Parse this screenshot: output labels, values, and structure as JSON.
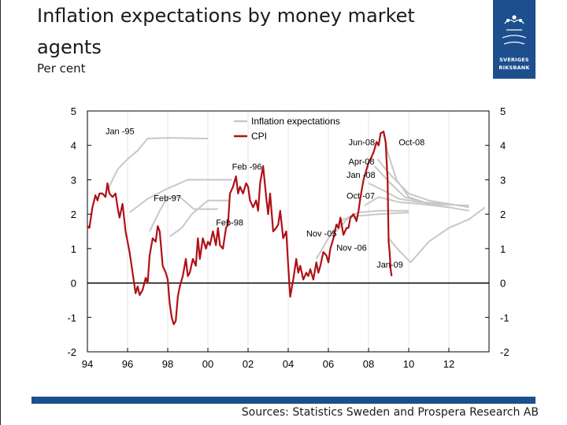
{
  "title": "Inflation expectations by money market agents",
  "subtitle": "Per cent",
  "logo": {
    "line1": "SVERIGES",
    "line2": "RIKSBANK"
  },
  "sources": "Sources: Statistics Sweden and Prospera Research AB",
  "chart_data": {
    "type": "line",
    "xlim": [
      1994,
      2014
    ],
    "ylim": [
      -2,
      5
    ],
    "x_tick_values": [
      1994,
      1996,
      1998,
      2000,
      2002,
      2004,
      2006,
      2008,
      2010,
      2012
    ],
    "x_tick_labels": [
      "94",
      "96",
      "98",
      "00",
      "02",
      "04",
      "06",
      "08",
      "10",
      "12"
    ],
    "y_ticks": [
      5,
      4,
      3,
      2,
      1,
      0,
      -1,
      -2
    ],
    "y_tick_labels": [
      "5",
      "4",
      "3",
      "2",
      "1",
      "0",
      "-1",
      "-2"
    ],
    "legend": {
      "position": "top-center",
      "entries": [
        {
          "label": "Inflation expectations",
          "color": "#c8c8c8"
        },
        {
          "label": "CPI",
          "color": "#b01016"
        }
      ]
    },
    "annotations": [
      {
        "text": "Jan -95",
        "x": 1994.9,
        "y": 4.33
      },
      {
        "text": "Feb -96",
        "x": 2001.2,
        "y": 3.3
      },
      {
        "text": "Feb-97",
        "x": 1997.3,
        "y": 2.38
      },
      {
        "text": "Feb-98",
        "x": 2000.4,
        "y": 1.67
      },
      {
        "text": "Nov -05",
        "x": 2004.9,
        "y": 1.35
      },
      {
        "text": "Nov -06",
        "x": 2006.4,
        "y": 0.94
      },
      {
        "text": "Jun-08",
        "x": 2007.0,
        "y": 4.0
      },
      {
        "text": "Oct-08",
        "x": 2009.5,
        "y": 4.0
      },
      {
        "text": "Apr-08",
        "x": 2007.0,
        "y": 3.45
      },
      {
        "text": "Jan -08",
        "x": 2006.9,
        "y": 3.05
      },
      {
        "text": "Oct -07",
        "x": 2006.9,
        "y": 2.45
      },
      {
        "text": "Jan-09",
        "x": 2008.4,
        "y": 0.45
      }
    ],
    "series": [
      {
        "name": "CPI",
        "color": "#b01016",
        "x": [
          1994.0,
          1994.1,
          1994.25,
          1994.4,
          1994.5,
          1994.6,
          1994.75,
          1994.9,
          1995.0,
          1995.1,
          1995.25,
          1995.4,
          1995.5,
          1995.6,
          1995.75,
          1995.9,
          1996.0,
          1996.1,
          1996.25,
          1996.4,
          1996.5,
          1996.6,
          1996.75,
          1996.9,
          1997.0,
          1997.1,
          1997.25,
          1997.4,
          1997.5,
          1997.6,
          1997.75,
          1997.9,
          1998.0,
          1998.1,
          1998.2,
          1998.3,
          1998.4,
          1998.5,
          1998.6,
          1998.75,
          1998.9,
          1999.0,
          1999.1,
          1999.25,
          1999.4,
          1999.5,
          1999.6,
          1999.75,
          1999.9,
          2000.0,
          2000.1,
          2000.25,
          2000.4,
          2000.5,
          2000.6,
          2000.75,
          2000.9,
          2001.0,
          2001.1,
          2001.25,
          2001.4,
          2001.5,
          2001.6,
          2001.75,
          2001.9,
          2002.0,
          2002.1,
          2002.25,
          2002.4,
          2002.5,
          2002.6,
          2002.75,
          2002.9,
          2003.0,
          2003.1,
          2003.25,
          2003.4,
          2003.5,
          2003.6,
          2003.75,
          2003.9,
          2004.0,
          2004.1,
          2004.25,
          2004.4,
          2004.5,
          2004.6,
          2004.75,
          2004.9,
          2005.0,
          2005.1,
          2005.25,
          2005.4,
          2005.5,
          2005.6,
          2005.75,
          2005.9,
          2006.0,
          2006.1,
          2006.25,
          2006.4,
          2006.5,
          2006.6,
          2006.75,
          2006.9,
          2007.0,
          2007.1,
          2007.25,
          2007.4,
          2007.5,
          2007.6,
          2007.75,
          2007.9,
          2008.0,
          2008.1,
          2008.25,
          2008.4,
          2008.5,
          2008.6,
          2008.75,
          2008.85,
          2008.95,
          2009.0,
          2009.05,
          2009.1,
          2009.15
        ],
        "y": [
          1.65,
          1.6,
          2.2,
          2.55,
          2.4,
          2.6,
          2.6,
          2.5,
          2.9,
          2.6,
          2.5,
          2.6,
          2.2,
          1.9,
          2.3,
          1.5,
          1.2,
          0.9,
          0.3,
          -0.3,
          -0.1,
          -0.35,
          -0.2,
          0.15,
          0.0,
          0.8,
          1.3,
          1.2,
          1.65,
          1.5,
          0.5,
          0.3,
          0.1,
          -0.6,
          -1.0,
          -1.2,
          -1.1,
          -0.4,
          -0.1,
          0.2,
          0.7,
          0.2,
          0.3,
          0.7,
          0.5,
          1.3,
          0.7,
          1.3,
          1.0,
          1.2,
          1.1,
          1.5,
          1.1,
          1.6,
          1.1,
          1.0,
          1.6,
          1.7,
          2.6,
          2.8,
          3.1,
          2.6,
          2.8,
          2.6,
          2.9,
          2.8,
          2.4,
          2.2,
          2.4,
          2.1,
          2.9,
          3.4,
          2.5,
          2.0,
          2.6,
          1.5,
          1.6,
          1.7,
          2.1,
          1.3,
          1.5,
          0.5,
          -0.4,
          0.1,
          0.7,
          0.3,
          0.5,
          0.1,
          0.3,
          0.2,
          0.4,
          0.1,
          0.6,
          0.3,
          0.5,
          0.9,
          0.8,
          0.6,
          1.0,
          1.3,
          1.7,
          1.6,
          1.9,
          1.4,
          1.6,
          1.6,
          1.9,
          2.0,
          1.8,
          2.1,
          2.5,
          3.0,
          3.3,
          3.5,
          3.6,
          3.8,
          4.1,
          4.0,
          4.35,
          4.4,
          4.1,
          3.0,
          1.2,
          0.9,
          0.4,
          0.2
        ]
      },
      {
        "name": "Jan -95",
        "color": "#c8c8c8",
        "x": [
          1995.0,
          1995.5,
          1996.0,
          1996.5,
          1997.0,
          1998.0,
          2000.0
        ],
        "y": [
          2.7,
          3.3,
          3.6,
          3.85,
          4.2,
          4.22,
          4.2
        ]
      },
      {
        "name": "Feb -96",
        "color": "#c8c8c8",
        "x": [
          1996.1,
          1997.0,
          1998.0,
          1999.0,
          2001.2
        ],
        "y": [
          2.05,
          2.45,
          2.75,
          3.0,
          3.0
        ]
      },
      {
        "name": "Feb-97",
        "color": "#c8c8c8",
        "x": [
          1997.1,
          1997.6,
          1998.0,
          1998.6,
          1999.3,
          2000.5
        ],
        "y": [
          1.5,
          2.1,
          2.5,
          2.5,
          2.15,
          2.15
        ]
      },
      {
        "name": "Feb-98",
        "color": "#c8c8c8",
        "x": [
          1998.1,
          1998.7,
          1999.2,
          2000.0,
          2001.1
        ],
        "y": [
          1.35,
          1.6,
          2.0,
          2.4,
          2.4
        ]
      },
      {
        "name": "Nov -05",
        "color": "#c8c8c8",
        "x": [
          2005.4,
          2006.0,
          2006.6,
          2007.5,
          2008.5,
          2010.0
        ],
        "y": [
          0.7,
          1.3,
          1.8,
          2.05,
          2.1,
          2.1
        ]
      },
      {
        "name": "Nov -06",
        "color": "#c8c8c8",
        "x": [
          2006.4,
          2007.0,
          2007.5,
          2008.5,
          2010.0
        ],
        "y": [
          1.5,
          1.9,
          1.95,
          2.0,
          2.05
        ]
      },
      {
        "name": "Oct -07",
        "color": "#c8c8c8",
        "x": [
          2007.8,
          2008.5,
          2009.5,
          2010.5,
          2012.0
        ],
        "y": [
          2.25,
          2.5,
          2.35,
          2.3,
          2.2
        ]
      },
      {
        "name": "Jan -08",
        "color": "#c8c8c8",
        "x": [
          2008.0,
          2008.7,
          2009.5,
          2010.5,
          2012.0
        ],
        "y": [
          2.9,
          2.7,
          2.45,
          2.35,
          2.3
        ]
      },
      {
        "name": "Apr-08",
        "color": "#c8c8c8",
        "x": [
          2008.3,
          2009.0,
          2009.8,
          2011.0,
          2013.0
        ],
        "y": [
          3.4,
          2.95,
          2.5,
          2.3,
          2.25
        ]
      },
      {
        "name": "Jun-08",
        "color": "#c8c8c8",
        "x": [
          2008.45,
          2009.0,
          2010.0,
          2011.0,
          2013.0
        ],
        "y": [
          3.6,
          3.2,
          2.6,
          2.4,
          2.2
        ]
      },
      {
        "name": "Oct-08",
        "color": "#c8c8c8",
        "x": [
          2008.75,
          2009.0,
          2009.4,
          2010.0,
          2011.0,
          2013.0
        ],
        "y": [
          4.35,
          3.7,
          3.0,
          2.5,
          2.3,
          2.1
        ]
      },
      {
        "name": "Jan-09",
        "color": "#c8c8c8",
        "x": [
          2009.0,
          2009.5,
          2010.1,
          2011.0,
          2012.0,
          2013.0,
          2013.8
        ],
        "y": [
          1.3,
          0.95,
          0.6,
          1.2,
          1.6,
          1.85,
          2.2
        ]
      }
    ]
  }
}
